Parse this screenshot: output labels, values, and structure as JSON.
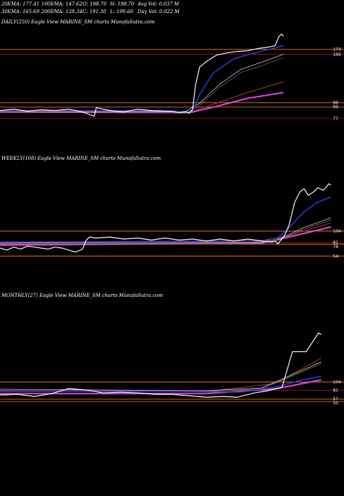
{
  "header": {
    "ema20": "20EMA: 177.41",
    "ema30": "30EMA: 165.69",
    "ema100": "100EMA: 147.62",
    "ema200": "200EMA: 128.34",
    "open": "O: 198.70",
    "close": "C: 191.30",
    "high": "H: 198.70",
    "low": "L: 190.60",
    "avgvol": "Avg Vol: 0.037  M",
    "dayvol": "Day Vol: 0.022  M"
  },
  "colors": {
    "background": "#000000",
    "price": "#ffffff",
    "ema_fast": "#1f3fd6",
    "ema_mid": "#cfcfcf",
    "ema_slow": "#b24a1a",
    "ema_long": "#e040e0",
    "hline_orange": "#ff8c1a",
    "hline_red": "#d01010"
  },
  "chart_data": [
    {
      "type": "line",
      "title": "DAILY(250) Eagle  View  MARINE_SM charts MunafaSutra.com",
      "ticks": [
        "173",
        "166",
        "99",
        "93",
        "77"
      ],
      "hlines": [
        173,
        166,
        99,
        93,
        77
      ],
      "ylim": [
        55,
        205
      ],
      "x_count": 250,
      "price": [
        [
          0,
          88
        ],
        [
          20,
          90
        ],
        [
          40,
          87
        ],
        [
          60,
          89
        ],
        [
          80,
          88
        ],
        [
          100,
          90
        ],
        [
          120,
          86
        ],
        [
          137,
          80
        ],
        [
          140,
          92
        ],
        [
          160,
          88
        ],
        [
          180,
          86
        ],
        [
          200,
          90
        ],
        [
          220,
          88
        ],
        [
          240,
          87
        ],
        [
          250,
          87
        ],
        [
          260,
          85
        ],
        [
          270,
          86
        ],
        [
          275,
          84
        ],
        [
          280,
          90
        ],
        [
          284,
          122
        ],
        [
          290,
          148
        ],
        [
          300,
          156
        ],
        [
          315,
          165
        ],
        [
          330,
          168
        ],
        [
          345,
          170
        ],
        [
          360,
          171
        ],
        [
          375,
          174
        ],
        [
          390,
          176
        ],
        [
          400,
          178
        ],
        [
          405,
          190
        ],
        [
          409,
          194
        ],
        [
          412,
          191
        ]
      ],
      "ema_fast": [
        [
          0,
          88
        ],
        [
          240,
          88
        ],
        [
          270,
          86
        ],
        [
          280,
          88
        ],
        [
          290,
          110
        ],
        [
          310,
          140
        ],
        [
          340,
          160
        ],
        [
          370,
          168
        ],
        [
          400,
          175
        ],
        [
          412,
          178
        ]
      ],
      "ema_mid": [
        [
          0,
          88
        ],
        [
          270,
          87
        ],
        [
          290,
          98
        ],
        [
          320,
          125
        ],
        [
          350,
          145
        ],
        [
          380,
          155
        ],
        [
          412,
          166
        ]
      ],
      "ema_slow": [
        [
          0,
          87
        ],
        [
          280,
          87
        ],
        [
          320,
          100
        ],
        [
          360,
          113
        ],
        [
          412,
          128
        ]
      ],
      "ema_long": [
        [
          0,
          86
        ],
        [
          280,
          86
        ],
        [
          320,
          95
        ],
        [
          360,
          105
        ],
        [
          412,
          113
        ]
      ]
    },
    {
      "type": "line",
      "title": "WEEKLY(108) Eagle  View  MARINE_SM charts MunafaSutra.com",
      "ticks": [
        "104",
        "81",
        "78",
        "54"
      ],
      "hlines": [
        104,
        81,
        78,
        54
      ],
      "ylim": [
        25,
        240
      ],
      "x_count": 108,
      "price": [
        [
          0,
          70
        ],
        [
          10,
          66
        ],
        [
          20,
          72
        ],
        [
          30,
          68
        ],
        [
          40,
          74
        ],
        [
          50,
          72
        ],
        [
          60,
          70
        ],
        [
          70,
          68
        ],
        [
          80,
          72
        ],
        [
          90,
          70
        ],
        [
          100,
          66
        ],
        [
          110,
          62
        ],
        [
          120,
          68
        ],
        [
          125,
          85
        ],
        [
          130,
          92
        ],
        [
          140,
          90
        ],
        [
          160,
          92
        ],
        [
          180,
          88
        ],
        [
          200,
          90
        ],
        [
          220,
          86
        ],
        [
          240,
          90
        ],
        [
          260,
          86
        ],
        [
          280,
          88
        ],
        [
          300,
          84
        ],
        [
          320,
          88
        ],
        [
          340,
          84
        ],
        [
          360,
          88
        ],
        [
          380,
          84
        ],
        [
          395,
          82
        ],
        [
          400,
          84
        ],
        [
          404,
          78
        ],
        [
          408,
          86
        ],
        [
          414,
          96
        ],
        [
          420,
          115
        ],
        [
          428,
          160
        ],
        [
          436,
          182
        ],
        [
          442,
          188
        ],
        [
          448,
          175
        ],
        [
          456,
          182
        ],
        [
          462,
          190
        ],
        [
          470,
          185
        ],
        [
          478,
          198
        ],
        [
          481,
          195
        ]
      ],
      "ema_fast": [
        [
          0,
          82
        ],
        [
          300,
          84
        ],
        [
          400,
          86
        ],
        [
          420,
          110
        ],
        [
          440,
          140
        ],
        [
          460,
          160
        ],
        [
          481,
          172
        ]
      ],
      "ema_mid": [
        [
          0,
          80
        ],
        [
          380,
          82
        ],
        [
          410,
          90
        ],
        [
          440,
          110
        ],
        [
          481,
          130
        ]
      ],
      "ema_slow": [
        [
          0,
          78
        ],
        [
          360,
          80
        ],
        [
          420,
          95
        ],
        [
          481,
          120
        ]
      ],
      "ema_long": [
        [
          0,
          76
        ],
        [
          380,
          80
        ],
        [
          420,
          92
        ],
        [
          481,
          112
        ]
      ]
    },
    {
      "type": "line",
      "title": "MONTHLY(27) Eagle  View  MARINE_SM charts MunafaSutra.com",
      "ticks": [
        "104",
        "81",
        "57",
        "50"
      ],
      "hlines": [
        104,
        81,
        57,
        50
      ],
      "ylim": [
        25,
        330
      ],
      "x_count": 27,
      "price": [
        [
          0,
          68
        ],
        [
          25,
          70
        ],
        [
          50,
          64
        ],
        [
          75,
          72
        ],
        [
          100,
          86
        ],
        [
          125,
          82
        ],
        [
          150,
          74
        ],
        [
          175,
          76
        ],
        [
          200,
          74
        ],
        [
          225,
          70
        ],
        [
          250,
          70
        ],
        [
          275,
          66
        ],
        [
          300,
          62
        ],
        [
          325,
          64
        ],
        [
          345,
          62
        ],
        [
          370,
          74
        ],
        [
          390,
          80
        ],
        [
          410,
          90
        ],
        [
          425,
          188
        ],
        [
          445,
          188
        ],
        [
          463,
          240
        ],
        [
          467,
          235
        ]
      ],
      "ema_fast": [
        [
          0,
          80
        ],
        [
          250,
          78
        ],
        [
          350,
          76
        ],
        [
          400,
          90
        ],
        [
          440,
          110
        ],
        [
          467,
          120
        ]
      ],
      "ema_mid": [
        [
          0,
          84
        ],
        [
          300,
          80
        ],
        [
          380,
          88
        ],
        [
          420,
          120
        ],
        [
          467,
          160
        ]
      ],
      "ema_slow": [
        [
          0,
          78
        ],
        [
          300,
          78
        ],
        [
          400,
          100
        ],
        [
          467,
          170
        ]
      ],
      "ema_long": [
        [
          0,
          72
        ],
        [
          300,
          72
        ],
        [
          400,
          85
        ],
        [
          467,
          110
        ]
      ]
    }
  ]
}
